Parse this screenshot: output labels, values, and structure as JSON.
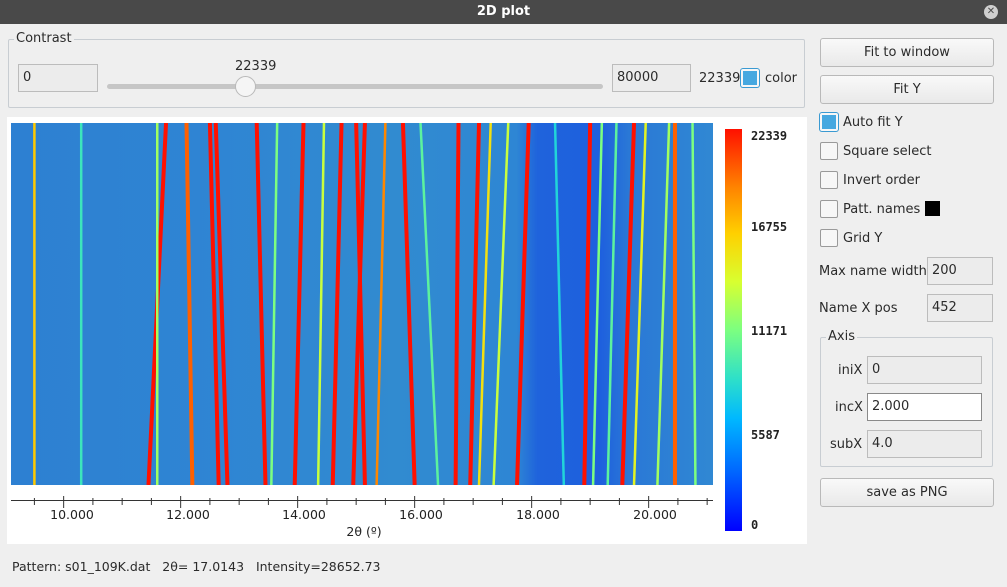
{
  "window": {
    "title": "2D plot"
  },
  "contrast": {
    "group_title": "Contrast",
    "min_value": "0",
    "slider_value": "22339",
    "max_value": "80000",
    "current_label": "22339",
    "color_checked": true,
    "color_label": "color",
    "slider_fraction": 0.279
  },
  "buttons": {
    "fit_window": "Fit to window",
    "fit_y": "Fit Y",
    "save_png": "save as PNG"
  },
  "options": {
    "auto_fit_y": {
      "label": "Auto fit Y",
      "checked": true
    },
    "square_select": {
      "label": "Square select",
      "checked": false
    },
    "invert_order": {
      "label": "Invert order",
      "checked": false
    },
    "patt_names": {
      "label": "Patt. names",
      "checked": false,
      "swatch_color": "#000000"
    },
    "grid_y": {
      "label": "Grid Y",
      "checked": false
    }
  },
  "fields": {
    "max_name_width": {
      "label": "Max name width",
      "value": "200"
    },
    "name_x_pos": {
      "label": "Name X pos",
      "value": "452"
    }
  },
  "axis": {
    "group_title": "Axis",
    "inix": {
      "label": "iniX",
      "value": "0"
    },
    "incx": {
      "label": "incX",
      "value": "2.000"
    },
    "subx": {
      "label": "subX",
      "value": "4.0"
    }
  },
  "chart_data": {
    "type": "heatmap",
    "xlabel": "2θ (º)",
    "xlim": [
      9.1,
      21.1
    ],
    "x_tick_labels": [
      "10.000",
      "12.000",
      "14.000",
      "16.000",
      "18.000",
      "20.000"
    ],
    "x_ticks": [
      10,
      12,
      14,
      16,
      18,
      20
    ],
    "colorbar_ticks": [
      "22339",
      "16755",
      "11171",
      "5587",
      "0"
    ],
    "colorbar_range": [
      0,
      22339
    ],
    "colormap": "jet",
    "lines": [
      {
        "x0": 9.5,
        "x1": 9.5,
        "intensity": 0.75
      },
      {
        "x0": 10.3,
        "x1": 10.3,
        "intensity": 0.4
      },
      {
        "x0": 11.75,
        "x1": 11.45,
        "intensity": 1.0
      },
      {
        "x0": 11.6,
        "x1": 11.6,
        "intensity": 0.55
      },
      {
        "x0": 12.1,
        "x1": 12.2,
        "intensity": 0.9
      },
      {
        "x0": 12.5,
        "x1": 12.65,
        "intensity": 1.0
      },
      {
        "x0": 12.6,
        "x1": 12.8,
        "intensity": 1.0
      },
      {
        "x0": 13.3,
        "x1": 13.45,
        "intensity": 1.0
      },
      {
        "x0": 13.65,
        "x1": 13.55,
        "intensity": 0.5
      },
      {
        "x0": 14.1,
        "x1": 13.95,
        "intensity": 1.0
      },
      {
        "x0": 14.45,
        "x1": 14.35,
        "intensity": 0.6
      },
      {
        "x0": 14.75,
        "x1": 14.6,
        "intensity": 1.0
      },
      {
        "x0": 15.0,
        "x1": 15.15,
        "intensity": 1.0
      },
      {
        "x0": 15.15,
        "x1": 14.95,
        "intensity": 1.0
      },
      {
        "x0": 15.5,
        "x1": 15.35,
        "intensity": 0.85
      },
      {
        "x0": 15.8,
        "x1": 16.0,
        "intensity": 1.0
      },
      {
        "x0": 16.1,
        "x1": 16.4,
        "intensity": 0.45
      },
      {
        "x0": 16.75,
        "x1": 16.7,
        "intensity": 1.0
      },
      {
        "x0": 17.1,
        "x1": 16.95,
        "intensity": 1.0
      },
      {
        "x0": 17.3,
        "x1": 17.1,
        "intensity": 0.7
      },
      {
        "x0": 17.6,
        "x1": 17.35,
        "intensity": 0.6
      },
      {
        "x0": 17.95,
        "x1": 17.75,
        "intensity": 1.0
      },
      {
        "x0": 18.4,
        "x1": 18.55,
        "intensity": 0.35
      },
      {
        "x0": 19.0,
        "x1": 18.9,
        "intensity": 1.0
      },
      {
        "x0": 19.2,
        "x1": 19.05,
        "intensity": 0.5
      },
      {
        "x0": 19.45,
        "x1": 19.3,
        "intensity": 0.45
      },
      {
        "x0": 19.75,
        "x1": 19.55,
        "intensity": 1.0
      },
      {
        "x0": 19.95,
        "x1": 19.75,
        "intensity": 0.65
      },
      {
        "x0": 20.35,
        "x1": 20.15,
        "intensity": 0.55
      },
      {
        "x0": 20.45,
        "x1": 20.45,
        "intensity": 0.9
      },
      {
        "x0": 20.75,
        "x1": 20.8,
        "intensity": 0.5
      }
    ]
  },
  "status": {
    "pattern": "Pattern: s01_109K.dat",
    "two_theta": "2θ= 17.0143",
    "intensity": "Intensity=28652.73"
  }
}
